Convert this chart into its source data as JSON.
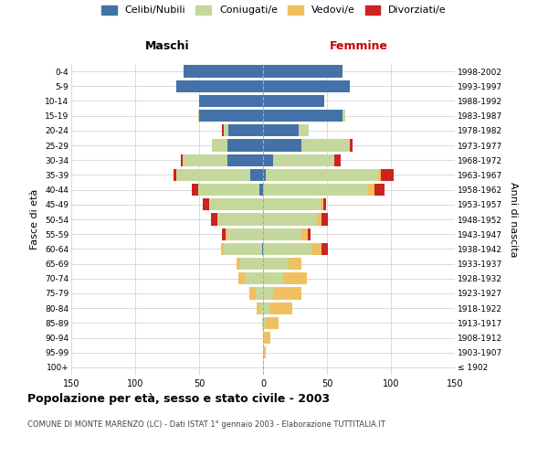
{
  "age_groups": [
    "100+",
    "95-99",
    "90-94",
    "85-89",
    "80-84",
    "75-79",
    "70-74",
    "65-69",
    "60-64",
    "55-59",
    "50-54",
    "45-49",
    "40-44",
    "35-39",
    "30-34",
    "25-29",
    "20-24",
    "15-19",
    "10-14",
    "5-9",
    "0-4"
  ],
  "birth_years": [
    "≤ 1902",
    "1903-1907",
    "1908-1912",
    "1913-1917",
    "1918-1922",
    "1923-1927",
    "1928-1932",
    "1933-1937",
    "1938-1942",
    "1943-1947",
    "1948-1952",
    "1953-1957",
    "1958-1962",
    "1963-1967",
    "1968-1972",
    "1973-1977",
    "1978-1982",
    "1983-1987",
    "1988-1992",
    "1993-1997",
    "1998-2002"
  ],
  "males": {
    "celibi": [
      0,
      0,
      0,
      0,
      0,
      0,
      0,
      0,
      1,
      0,
      0,
      0,
      3,
      10,
      28,
      28,
      27,
      50,
      50,
      68,
      62
    ],
    "coniugati": [
      0,
      0,
      0,
      1,
      2,
      6,
      14,
      18,
      30,
      28,
      36,
      42,
      48,
      58,
      35,
      12,
      4,
      1,
      0,
      0,
      0
    ],
    "vedovi": [
      0,
      0,
      0,
      0,
      3,
      5,
      5,
      3,
      2,
      1,
      0,
      0,
      0,
      0,
      0,
      0,
      0,
      0,
      0,
      0,
      0
    ],
    "divorziati": [
      0,
      0,
      0,
      0,
      0,
      0,
      0,
      0,
      0,
      3,
      5,
      5,
      5,
      2,
      1,
      0,
      1,
      0,
      0,
      0,
      0
    ]
  },
  "females": {
    "nubili": [
      0,
      0,
      0,
      0,
      0,
      0,
      0,
      0,
      0,
      0,
      0,
      0,
      0,
      2,
      8,
      30,
      28,
      62,
      48,
      68,
      62
    ],
    "coniugate": [
      0,
      0,
      1,
      2,
      5,
      8,
      16,
      20,
      38,
      30,
      42,
      45,
      82,
      88,
      48,
      38,
      8,
      2,
      0,
      0,
      0
    ],
    "vedove": [
      0,
      2,
      5,
      10,
      18,
      22,
      18,
      10,
      8,
      5,
      4,
      2,
      5,
      2,
      0,
      0,
      0,
      0,
      0,
      0,
      0
    ],
    "divorziate": [
      0,
      0,
      0,
      0,
      0,
      0,
      0,
      0,
      5,
      2,
      5,
      2,
      8,
      10,
      5,
      2,
      0,
      0,
      0,
      0,
      0
    ]
  },
  "colors": {
    "celibi": "#4472a8",
    "coniugati": "#c5d89b",
    "vedovi": "#f0c060",
    "divorziati": "#cc2222"
  },
  "xlim": 150,
  "title": "Popolazione per età, sesso e stato civile - 2003",
  "subtitle": "COMUNE DI MONTE MARENZO (LC) - Dati ISTAT 1° gennaio 2003 - Elaborazione TUTTITALIA.IT",
  "ylabel_left": "Fasce di età",
  "ylabel_right": "Anni di nascita",
  "xlabel_left": "Maschi",
  "xlabel_right": "Femmine",
  "legend_labels": [
    "Celibi/Nubili",
    "Coniugati/e",
    "Vedovi/e",
    "Divorziati/e"
  ],
  "background_color": "#ffffff",
  "grid_color": "#cccccc"
}
